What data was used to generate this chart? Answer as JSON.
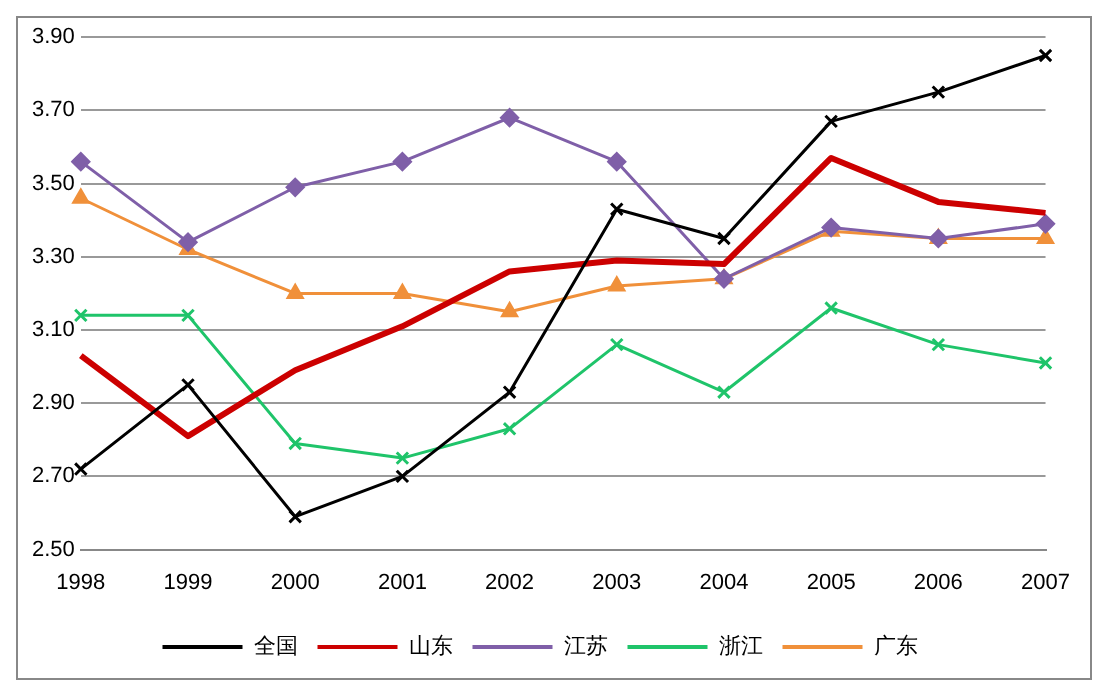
{
  "chart_data": {
    "type": "line",
    "categories": [
      "1998",
      "1999",
      "2000",
      "2001",
      "2002",
      "2003",
      "2004",
      "2005",
      "2006",
      "2007"
    ],
    "series": [
      {
        "name": "全国",
        "color": "#000000",
        "marker": "cross",
        "values": [
          2.72,
          2.95,
          2.59,
          2.7,
          2.93,
          3.43,
          3.35,
          3.67,
          3.75,
          3.85
        ]
      },
      {
        "name": "山东",
        "color": "#cc0000",
        "marker": "none",
        "values": [
          3.03,
          2.81,
          2.99,
          3.11,
          3.26,
          3.29,
          3.28,
          3.57,
          3.45,
          3.42
        ]
      },
      {
        "name": "江苏",
        "color": "#7f5fa8",
        "marker": "diamond",
        "values": [
          3.56,
          3.34,
          3.49,
          3.56,
          3.68,
          3.56,
          3.24,
          3.38,
          3.35,
          3.39
        ]
      },
      {
        "name": "浙江",
        "color": "#1fc46a",
        "marker": "cross",
        "values": [
          3.14,
          3.14,
          2.79,
          2.75,
          2.83,
          3.06,
          2.93,
          3.16,
          3.06,
          3.01
        ]
      },
      {
        "name": "广东",
        "color": "#f0903a",
        "marker": "triangle",
        "values": [
          3.46,
          3.32,
          3.2,
          3.2,
          3.15,
          3.22,
          3.24,
          3.37,
          3.35,
          3.35
        ]
      }
    ],
    "ylim": [
      2.5,
      3.9
    ],
    "yticks": [
      {
        "value": 2.5,
        "label": "2.50"
      },
      {
        "value": 2.7,
        "label": "2.70"
      },
      {
        "value": 2.9,
        "label": "2.90"
      },
      {
        "value": 3.1,
        "label": "3.10"
      },
      {
        "value": 3.3,
        "label": "3.30"
      },
      {
        "value": 3.5,
        "label": "3.50"
      },
      {
        "value": 3.7,
        "label": "3.70"
      },
      {
        "value": 3.9,
        "label": "3.90"
      }
    ],
    "grid": "y",
    "legend": "bottom"
  }
}
